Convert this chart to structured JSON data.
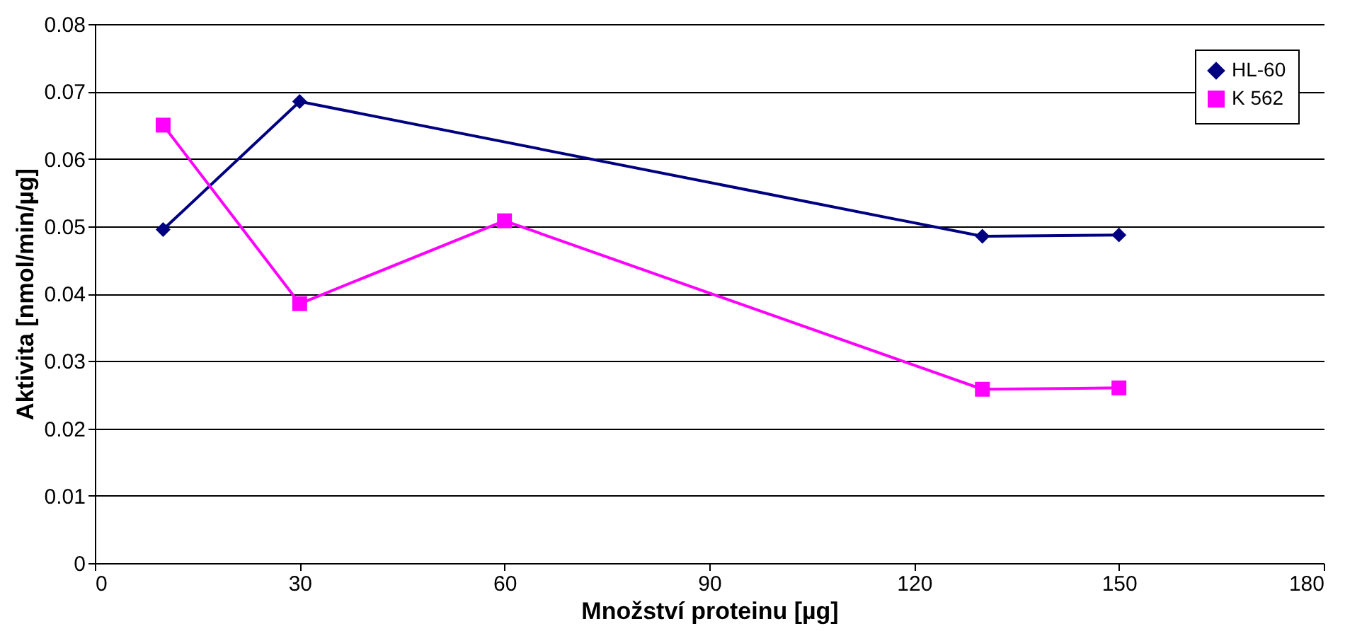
{
  "chart_data": {
    "type": "line",
    "xlabel": "Množství proteinu [µg]",
    "ylabel": "Aktivita [nmol/min/µg]",
    "xlim": [
      0,
      180
    ],
    "xticks": [
      0,
      30,
      60,
      90,
      120,
      150,
      180
    ],
    "ylim": [
      0,
      0.08
    ],
    "yticks": [
      0,
      0.01,
      0.02,
      0.03,
      0.04,
      0.05,
      0.06,
      0.07,
      0.08
    ],
    "grid": "y",
    "legend": "top right",
    "series": [
      {
        "name": "HL-60",
        "color": "#000080",
        "marker": "diamond",
        "x": [
          10,
          30,
          130,
          150
        ],
        "values": [
          0.0495,
          0.0685,
          0.0485,
          0.0487
        ]
      },
      {
        "name": "K 562",
        "color": "#ff00ff",
        "marker": "square",
        "x": [
          10,
          30,
          60,
          130,
          150
        ],
        "values": [
          0.065,
          0.0385,
          0.0508,
          0.0258,
          0.026
        ]
      }
    ]
  }
}
